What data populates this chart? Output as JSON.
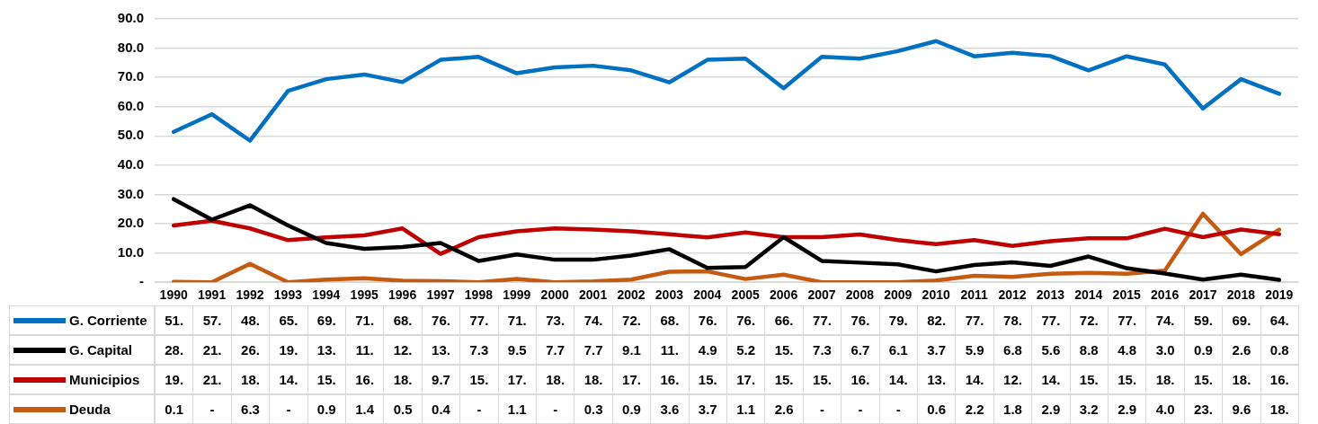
{
  "chart_data": {
    "type": "line",
    "categories": [
      "1990",
      "1991",
      "1992",
      "1993",
      "1994",
      "1995",
      "1996",
      "1997",
      "1998",
      "1999",
      "2000",
      "2001",
      "2002",
      "2003",
      "2004",
      "2005",
      "2006",
      "2007",
      "2008",
      "2009",
      "2010",
      "2011",
      "2012",
      "2013",
      "2014",
      "2015",
      "2016",
      "2017",
      "2018",
      "2019"
    ],
    "ylim": [
      0,
      90
    ],
    "yticks": [
      {
        "value": 0,
        "label": "-"
      },
      {
        "value": 10,
        "label": "10.0"
      },
      {
        "value": 20,
        "label": "20.0"
      },
      {
        "value": 30,
        "label": "30.0"
      },
      {
        "value": 40,
        "label": "40.0"
      },
      {
        "value": 50,
        "label": "50.0"
      },
      {
        "value": 60,
        "label": "60.0"
      },
      {
        "value": 70,
        "label": "70.0"
      },
      {
        "value": 80,
        "label": "80.0"
      },
      {
        "value": 90,
        "label": "90.0"
      }
    ],
    "grid": "y",
    "legend": "bottom",
    "marker": "none",
    "series": [
      {
        "name": "G. Corriente",
        "color": "#0070c0",
        "values": [
          51.4,
          57.4,
          48.4,
          65.4,
          69.4,
          71.0,
          68.4,
          76.0,
          77.0,
          71.4,
          73.4,
          74.0,
          72.4,
          68.3,
          76.0,
          76.4,
          66.3,
          77.0,
          76.4,
          79.0,
          82.4,
          77.2,
          78.4,
          77.3,
          72.4,
          77.2,
          74.4,
          59.4,
          69.4,
          64.4
        ],
        "value_labels": [
          "51.",
          "57.",
          "48.",
          "65.",
          "69.",
          "71.",
          "68.",
          "76.",
          "77.",
          "71.",
          "73.",
          "74.",
          "72.",
          "68.",
          "76.",
          "76.",
          "66.",
          "77.",
          "76.",
          "79.",
          "82.",
          "77.",
          "78.",
          "77.",
          "72.",
          "77.",
          "74.",
          "59.",
          "69.",
          "64."
        ]
      },
      {
        "name": "G. Capital",
        "color": "#000000",
        "values": [
          28.4,
          21.4,
          26.3,
          19.4,
          13.4,
          11.4,
          12.0,
          13.4,
          7.3,
          9.5,
          7.7,
          7.7,
          9.1,
          11.3,
          4.9,
          5.2,
          15.4,
          7.3,
          6.7,
          6.1,
          3.7,
          5.9,
          6.8,
          5.6,
          8.8,
          4.8,
          3.0,
          0.9,
          2.6,
          0.8
        ],
        "value_labels": [
          "28.",
          "21.",
          "26.",
          "19.",
          "13.",
          "11.",
          "12.",
          "13.",
          "7.3",
          "9.5",
          "7.7",
          "7.7",
          "9.1",
          "11.",
          "4.9",
          "5.2",
          "15.",
          "7.3",
          "6.7",
          "6.1",
          "3.7",
          "5.9",
          "6.8",
          "5.6",
          "8.8",
          "4.8",
          "3.0",
          "0.9",
          "2.6",
          "0.8"
        ]
      },
      {
        "name": "Municipios",
        "color": "#c00000",
        "values": [
          19.4,
          21.0,
          18.4,
          14.4,
          15.3,
          16.0,
          18.4,
          9.7,
          15.4,
          17.4,
          18.4,
          18.0,
          17.4,
          16.4,
          15.3,
          17.0,
          15.4,
          15.4,
          16.3,
          14.4,
          13.0,
          14.4,
          12.4,
          14.0,
          15.0,
          15.0,
          18.3,
          15.4,
          18.0,
          16.4
        ],
        "value_labels": [
          "19.",
          "21.",
          "18.",
          "14.",
          "15.",
          "16.",
          "18.",
          "9.7",
          "15.",
          "17.",
          "18.",
          "18.",
          "17.",
          "16.",
          "15.",
          "17.",
          "15.",
          "15.",
          "16.",
          "14.",
          "13.",
          "14.",
          "12.",
          "14.",
          "15.",
          "15.",
          "18.",
          "15.",
          "18.",
          "16."
        ]
      },
      {
        "name": "Deuda",
        "color": "#c55a11",
        "values": [
          0.1,
          0,
          6.3,
          0,
          0.9,
          1.4,
          0.5,
          0.4,
          0,
          1.1,
          0,
          0.3,
          0.9,
          3.6,
          3.7,
          1.1,
          2.6,
          0,
          0,
          0,
          0.6,
          2.2,
          1.8,
          2.9,
          3.2,
          2.9,
          4.0,
          23.4,
          9.6,
          18.0
        ],
        "value_labels": [
          "0.1",
          "-",
          "6.3",
          "-",
          "0.9",
          "1.4",
          "0.5",
          "0.4",
          "-",
          "1.1",
          "-",
          "0.3",
          "0.9",
          "3.6",
          "3.7",
          "1.1",
          "2.6",
          "-",
          "-",
          "-",
          "0.6",
          "2.2",
          "1.8",
          "2.9",
          "3.2",
          "2.9",
          "4.0",
          "23.",
          "9.6",
          "18."
        ]
      }
    ]
  }
}
